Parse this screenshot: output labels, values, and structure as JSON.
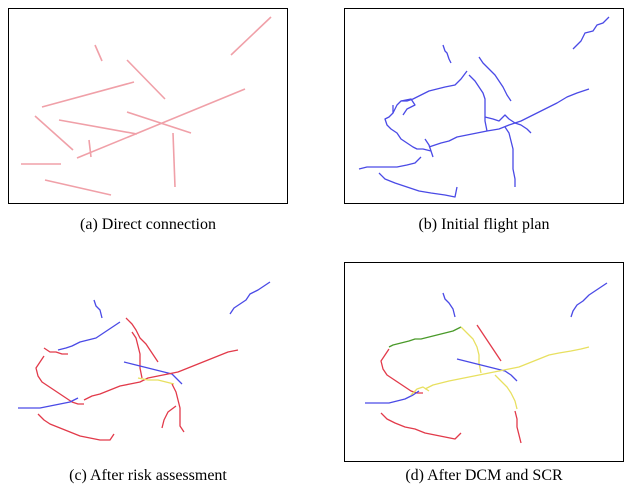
{
  "captions": {
    "a": "(a) Direct connection",
    "b": "(b) Initial flight plan",
    "c": "(c) After risk assessment",
    "d": "(d) After DCM and SCR"
  },
  "colors": {
    "direct": "#f0a0a8",
    "plan": "#4a4ae6",
    "risk": "#e23a4a",
    "resolved": "#e8e060",
    "green": "#4a9a2a"
  }
}
